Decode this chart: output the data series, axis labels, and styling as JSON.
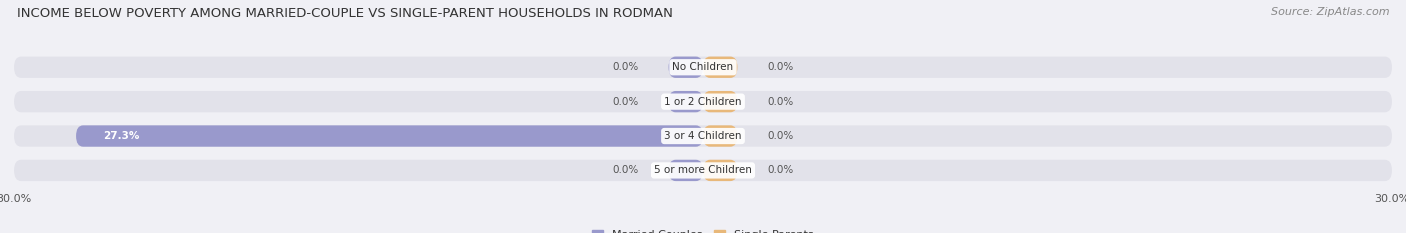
{
  "title": "INCOME BELOW POVERTY AMONG MARRIED-COUPLE VS SINGLE-PARENT HOUSEHOLDS IN RODMAN",
  "source": "Source: ZipAtlas.com",
  "categories": [
    "No Children",
    "1 or 2 Children",
    "3 or 4 Children",
    "5 or more Children"
  ],
  "married_values": [
    0.0,
    0.0,
    27.3,
    0.0
  ],
  "single_values": [
    0.0,
    0.0,
    0.0,
    0.0
  ],
  "married_color": "#9999cc",
  "single_color": "#e8b87a",
  "bar_bg_color": "#e2e2ea",
  "bg_color": "#f0f0f5",
  "xlim": 30.0,
  "bar_height": 0.62,
  "figsize": [
    14.06,
    2.33
  ],
  "dpi": 100,
  "title_fontsize": 9.5,
  "label_fontsize": 7.5,
  "tick_fontsize": 8,
  "source_fontsize": 8
}
